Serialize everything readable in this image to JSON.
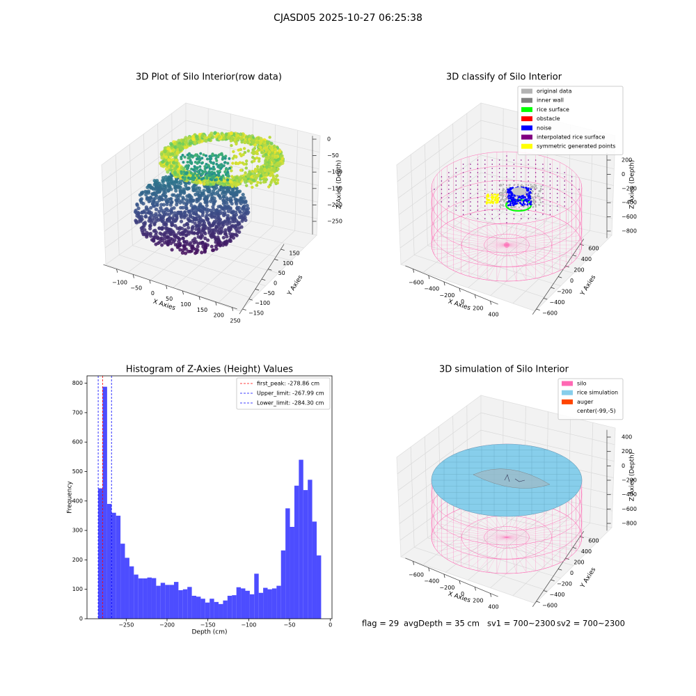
{
  "title": "CJASD05 2025-10-27 06:25:38",
  "footer": [
    "flag = 29",
    "avgDepth = 35 cm",
    "sv1 = 700~2300",
    "sv2 = 700~2300"
  ],
  "chart_data": [
    {
      "type": "scatter3d",
      "title": "3D Plot of Silo Interior(row data)",
      "xlabel": "X Axies",
      "ylabel": "Y Axies",
      "zlabel": "Z Axies (Depth)",
      "xlim": [
        -140,
        265
      ],
      "ylim": [
        -175,
        175
      ],
      "zlim": [
        -290,
        10
      ],
      "xticks": [
        {
          "value": -100,
          "label": "−100"
        },
        {
          "value": -50,
          "label": "−50"
        },
        0,
        50,
        100,
        150,
        200,
        250
      ],
      "yticks": [
        {
          "value": -150,
          "label": "−150"
        },
        {
          "value": -100,
          "label": "−100"
        },
        {
          "value": -50,
          "label": "−50"
        },
        0,
        50,
        100,
        150
      ],
      "zticks": [
        0,
        {
          "value": -50,
          "label": "−50"
        },
        {
          "value": -100,
          "label": "−100"
        },
        {
          "value": -150,
          "label": "−150"
        },
        {
          "value": -200,
          "label": "−200"
        },
        {
          "value": -250,
          "label": "−250"
        }
      ]
    },
    {
      "type": "scatter3d",
      "title": "3D classify of Silo Interior",
      "xlabel": "X Axies",
      "ylabel": "Y Axies",
      "zlabel": "Z Axies (Depth)",
      "xlim": [
        -700,
        500
      ],
      "ylim": [
        -700,
        700
      ],
      "zlim": [
        -900,
        300
      ],
      "xticks": [
        {
          "value": -600,
          "label": "−600"
        },
        {
          "value": -400,
          "label": "−400"
        },
        {
          "value": -200,
          "label": "−200"
        },
        0,
        200,
        400
      ],
      "yticks": [
        {
          "value": -600,
          "label": "−600"
        },
        {
          "value": -400,
          "label": "−400"
        },
        {
          "value": -200,
          "label": "−200"
        },
        0,
        200,
        400,
        600
      ],
      "zticks": [
        200,
        0,
        {
          "value": -200,
          "label": "−200"
        },
        {
          "value": -400,
          "label": "−400"
        },
        {
          "value": -600,
          "label": "−600"
        },
        {
          "value": -800,
          "label": "−800"
        }
      ],
      "legend": [
        {
          "name": "original data",
          "color": "#b3b3b3"
        },
        {
          "name": "inner wall",
          "color": "#808080"
        },
        {
          "name": "rice surface",
          "color": "#00ff00"
        },
        {
          "name": "obstacle",
          "color": "#ff0000"
        },
        {
          "name": "noise",
          "color": "#0000ff"
        },
        {
          "name": "interpolated rice surface",
          "color": "#800080"
        },
        {
          "name": "symmetric generated points",
          "color": "#ffff00"
        }
      ],
      "legend_loc": "upper right"
    },
    {
      "type": "histogram",
      "title": "Histogram of Z-Axies (Height) Values",
      "xlabel": "Depth (cm)",
      "ylabel": "Frequency",
      "color": "#4d4dff",
      "bins": [
        -284.3,
        -278.84,
        -273.38,
        -267.92,
        -262.46,
        -257.0,
        -251.54,
        -246.08,
        -240.62,
        -235.16,
        -229.7,
        -224.24,
        -218.78,
        -213.32,
        -207.86,
        -202.4,
        -196.94,
        -191.48,
        -186.02,
        -180.56,
        -175.1,
        -169.64,
        -164.18,
        -158.72,
        -153.26,
        -147.8,
        -142.34,
        -136.88,
        -131.42,
        -125.96,
        -120.5,
        -115.04,
        -109.58,
        -104.12,
        -98.66,
        -93.2,
        -87.74,
        -82.28,
        -76.82,
        -71.36,
        -65.9,
        -60.44,
        -54.98,
        -49.52,
        -44.06,
        -38.6,
        -33.14,
        -27.68,
        -22.22,
        -16.76,
        -11.3
      ],
      "values": [
        443,
        788,
        390,
        360,
        350,
        255,
        207,
        178,
        150,
        137,
        137,
        140,
        138,
        112,
        122,
        115,
        115,
        125,
        97,
        100,
        108,
        78,
        75,
        68,
        55,
        68,
        57,
        50,
        62,
        78,
        80,
        107,
        103,
        95,
        83,
        153,
        88,
        105,
        100,
        103,
        112,
        232,
        375,
        312,
        452,
        540,
        437,
        472,
        330,
        215
      ],
      "xlim": [
        -298,
        2
      ],
      "ylim": [
        0,
        825
      ],
      "xticks": [
        {
          "value": -250,
          "label": "−250"
        },
        {
          "value": -200,
          "label": "−200"
        },
        {
          "value": -150,
          "label": "−150"
        },
        {
          "value": -100,
          "label": "−100"
        },
        {
          "value": -50,
          "label": "−50"
        },
        0
      ],
      "yticks": [
        0,
        100,
        200,
        300,
        400,
        500,
        600,
        700,
        800
      ],
      "vlines": [
        {
          "name": "first_peak: -278.86 cm",
          "value": -278.86,
          "color": "#ff0000"
        },
        {
          "name": "Upper_limit: -267.99 cm",
          "value": -267.99,
          "color": "#0000ff"
        },
        {
          "name": "Lower_limit: -284.30 cm",
          "value": -284.3,
          "color": "#0000ff"
        }
      ],
      "legend_loc": "upper right"
    },
    {
      "type": "surface3d",
      "title": "3D simulation of Silo Interior",
      "xlabel": "X Axies",
      "ylabel": "Y Axies",
      "zlabel": "Z Axies (Depth)",
      "xlim": [
        -700,
        500
      ],
      "ylim": [
        -700,
        700
      ],
      "zlim": [
        -900,
        500
      ],
      "xticks": [
        {
          "value": -600,
          "label": "−600"
        },
        {
          "value": -400,
          "label": "−400"
        },
        {
          "value": -200,
          "label": "−200"
        },
        0,
        200,
        400
      ],
      "yticks": [
        {
          "value": -600,
          "label": "−600"
        },
        {
          "value": -400,
          "label": "−400"
        },
        {
          "value": -200,
          "label": "−200"
        },
        0,
        200,
        400,
        600
      ],
      "zticks": [
        400,
        200,
        0,
        {
          "value": -200,
          "label": "−200"
        },
        {
          "value": -400,
          "label": "−400"
        },
        {
          "value": -600,
          "label": "−600"
        },
        {
          "value": -800,
          "label": "−800"
        }
      ],
      "legend": [
        {
          "name": "silo",
          "color": "#ff69b4"
        },
        {
          "name": "rice simulation",
          "color": "#87ceeb"
        },
        {
          "name": "auger",
          "color": "#ff4500"
        },
        {
          "name": "center(-99,-5)",
          "color": "#ffffff"
        }
      ],
      "legend_loc": "upper right"
    }
  ]
}
